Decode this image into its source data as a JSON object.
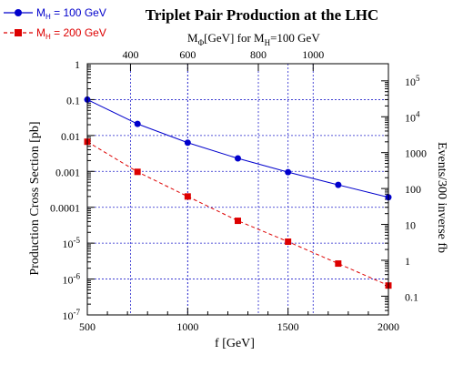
{
  "colors": {
    "series_blue": "#0000cc",
    "series_red": "#dd0000",
    "grid": "#2222cc",
    "frame": "#000000",
    "text": "#000000"
  },
  "chart_data": {
    "type": "line",
    "title": "Triplet Pair Production at the LHC",
    "xlabel": "f [GeV]",
    "ylabel": "Production Cross Section [pb]",
    "top_axis_label": {
      "main": "M",
      "sub1": "Φ",
      "mid": "[GeV] for M",
      "sub2": "H",
      "end": "=100 GeV"
    },
    "right_axis_label": "Events/300 inverse fb",
    "x_scale": "linear",
    "y_scale": "log",
    "xlim": [
      500,
      2000
    ],
    "ylim": [
      1e-07,
      1
    ],
    "x_ticks": [
      500,
      1000,
      1500,
      2000
    ],
    "x_tick_labels": [
      "500",
      "1000",
      "1500",
      "2000"
    ],
    "y_ticks": [
      1,
      0.1,
      0.01,
      0.001,
      0.0001,
      1e-05,
      1e-06,
      1e-07
    ],
    "y_tick_labels": [
      {
        "base": "1",
        "exp": ""
      },
      {
        "base": "0.1",
        "exp": ""
      },
      {
        "base": "0.01",
        "exp": ""
      },
      {
        "base": "0.001",
        "exp": ""
      },
      {
        "base": "0.0001",
        "exp": ""
      },
      {
        "base": "10",
        "exp": "-5"
      },
      {
        "base": "10",
        "exp": "-6"
      },
      {
        "base": "10",
        "exp": "-7"
      }
    ],
    "top_ticks": [
      {
        "f": 715,
        "label": "400"
      },
      {
        "f": 1000,
        "label": "600"
      },
      {
        "f": 1352,
        "label": "800"
      },
      {
        "f": 1625,
        "label": "1000"
      }
    ],
    "right_ticks": [
      {
        "sigma": 0.333,
        "base": "10",
        "exp": "5"
      },
      {
        "sigma": 0.0333,
        "base": "10",
        "exp": "4"
      },
      {
        "sigma": 0.00333,
        "base": "1000",
        "exp": ""
      },
      {
        "sigma": 0.000333,
        "base": "100",
        "exp": ""
      },
      {
        "sigma": 3.33e-05,
        "base": "10",
        "exp": ""
      },
      {
        "sigma": 3.33e-06,
        "base": "1",
        "exp": ""
      },
      {
        "sigma": 3.33e-07,
        "base": "0.1",
        "exp": ""
      }
    ],
    "grid": true,
    "legend": {
      "placement": "top-left",
      "entries": [
        {
          "pre": "M",
          "sub": "H",
          "post": " = 100 GeV"
        },
        {
          "pre": "M",
          "sub": "H",
          "post": " = 200 GeV"
        }
      ]
    },
    "series": [
      {
        "name": "M_H = 100 GeV",
        "line_style": "solid",
        "marker": "circle",
        "x": [
          500,
          750,
          1000,
          1250,
          1500,
          1750,
          2000
        ],
        "y": [
          0.1,
          0.021,
          0.0063,
          0.0023,
          0.00095,
          0.00042,
          0.00019
        ]
      },
      {
        "name": "M_H = 200 GeV",
        "line_style": "dashed",
        "marker": "square",
        "x": [
          500,
          750,
          1000,
          1250,
          1500,
          1750,
          2000
        ],
        "y": [
          0.0067,
          0.00097,
          0.0002,
          4.2e-05,
          1.1e-05,
          2.7e-06,
          6.6e-07
        ]
      }
    ]
  }
}
